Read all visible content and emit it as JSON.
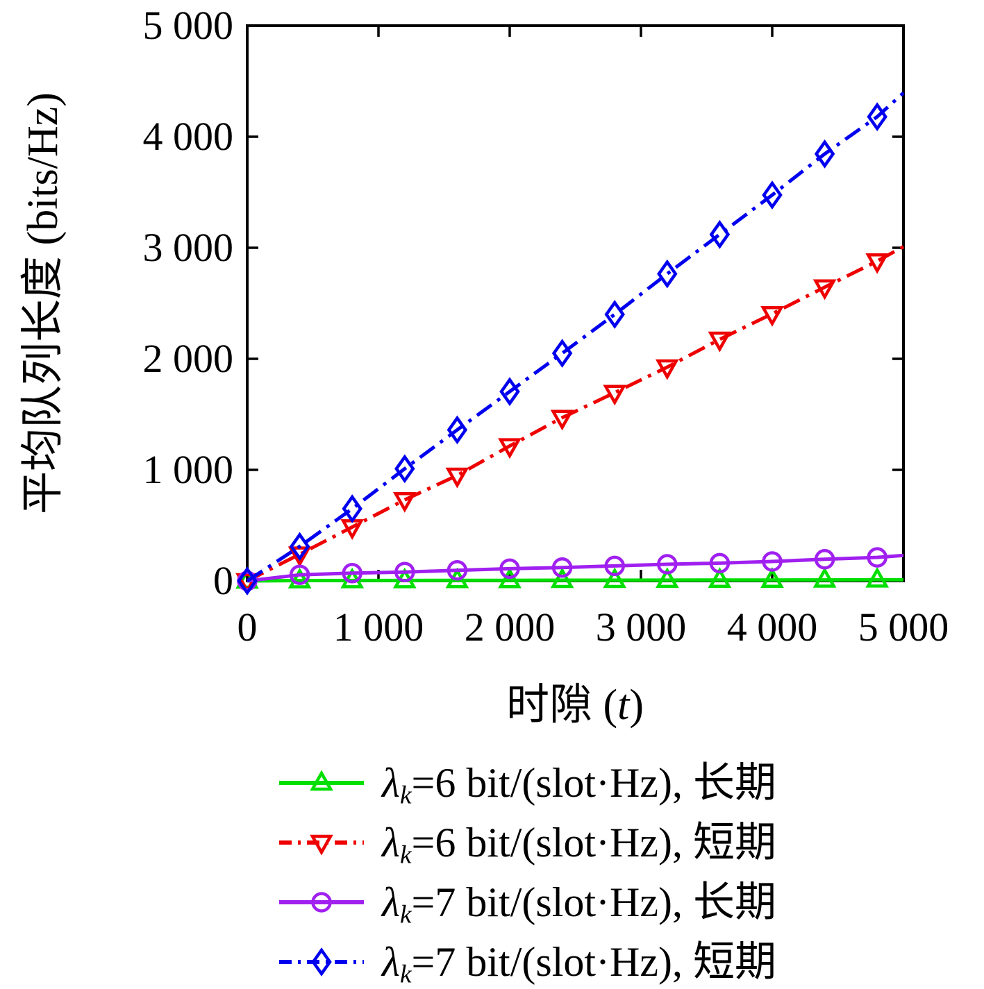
{
  "chart_data": {
    "type": "line",
    "xlabel_parts": [
      {
        "t": "时隙 (",
        "i": false,
        "sub": false
      },
      {
        "t": "t",
        "i": true,
        "sub": false
      },
      {
        "t": ")",
        "i": false,
        "sub": false
      }
    ],
    "ylabel": "平均队列长度 (bits/Hz)",
    "xlim": [
      0,
      5000
    ],
    "ylim": [
      0,
      5000
    ],
    "grid": false,
    "legend_position": "below",
    "x_ticks": {
      "values": [
        0,
        1000,
        2000,
        3000,
        4000,
        5000
      ],
      "labels": [
        "0",
        "1 000",
        "2 000",
        "3 000",
        "4 000",
        "5 000"
      ]
    },
    "y_ticks": {
      "values": [
        0,
        1000,
        2000,
        3000,
        4000,
        5000
      ],
      "labels": [
        "0",
        "1 000",
        "2 000",
        "3 000",
        "4 000",
        "5 000"
      ]
    },
    "x": [
      0,
      400,
      800,
      1200,
      1600,
      2000,
      2400,
      2800,
      3200,
      3600,
      4000,
      4400,
      4800,
      5000
    ],
    "series": [
      {
        "name_plain": "λk=6 bit/(slot·Hz), 长期",
        "label_parts": [
          {
            "t": "λ",
            "i": true,
            "sub": false
          },
          {
            "t": "k",
            "i": true,
            "sub": true
          },
          {
            "t": "=6 bit/(slot·Hz), 长期",
            "i": false,
            "sub": false
          }
        ],
        "color": "#00DF00",
        "marker": "triangle-up",
        "line_style": "solid",
        "values": [
          0,
          3,
          4,
          4,
          5,
          5,
          6,
          6,
          7,
          8,
          8,
          9,
          10,
          10
        ],
        "last_marker_index": 12
      },
      {
        "name_plain": "λk=6 bit/(slot·Hz), 短期",
        "label_parts": [
          {
            "t": "λ",
            "i": true,
            "sub": false
          },
          {
            "t": "k",
            "i": true,
            "sub": true
          },
          {
            "t": "=6 bit/(slot·Hz), 短期",
            "i": false,
            "sub": false
          }
        ],
        "color": "#EE0000",
        "marker": "triangle-down",
        "line_style": "dash-dot",
        "values": [
          0,
          240,
          485,
          730,
          950,
          1215,
          1470,
          1695,
          1925,
          2175,
          2405,
          2645,
          2880,
          3010
        ],
        "last_marker_index": 12
      },
      {
        "name_plain": "λk=7 bit/(slot·Hz), 长期",
        "label_parts": [
          {
            "t": "λ",
            "i": true,
            "sub": false
          },
          {
            "t": "k",
            "i": true,
            "sub": true
          },
          {
            "t": "=7 bit/(slot·Hz), 长期",
            "i": false,
            "sub": false
          }
        ],
        "color": "#A020F0",
        "marker": "circle",
        "line_style": "solid",
        "values": [
          0,
          55,
          70,
          80,
          95,
          110,
          120,
          135,
          150,
          160,
          175,
          195,
          212,
          230
        ],
        "last_marker_index": 12
      },
      {
        "name_plain": "λk=7 bit/(slot·Hz), 短期",
        "label_parts": [
          {
            "t": "λ",
            "i": true,
            "sub": false
          },
          {
            "t": "k",
            "i": true,
            "sub": true
          },
          {
            "t": "=7 bit/(slot·Hz), 短期",
            "i": false,
            "sub": false
          }
        ],
        "color": "#0000EE",
        "marker": "diamond",
        "line_style": "dash-dot",
        "values": [
          0,
          310,
          650,
          1010,
          1360,
          1705,
          2050,
          2400,
          2765,
          3120,
          3475,
          3845,
          4180,
          4395
        ],
        "last_marker_index": 12
      }
    ],
    "axis_color": "#000000"
  }
}
